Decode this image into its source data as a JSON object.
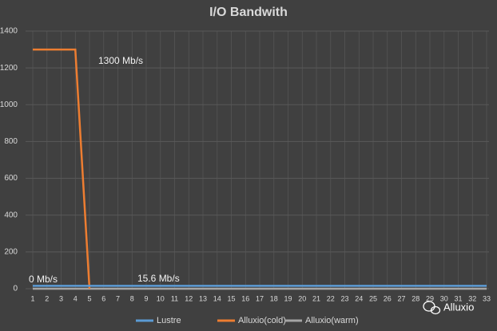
{
  "chart_data": {
    "type": "line",
    "title": "I/O Bandwith",
    "categories": [
      1,
      2,
      3,
      4,
      5,
      6,
      7,
      8,
      9,
      10,
      11,
      12,
      13,
      14,
      15,
      16,
      17,
      18,
      19,
      20,
      21,
      22,
      23,
      24,
      25,
      26,
      27,
      28,
      29,
      30,
      31,
      32,
      33
    ],
    "series": [
      {
        "name": "Lustre",
        "color": "#5b9bd5",
        "values": [
          15.6,
          15.6,
          15.6,
          15.6,
          15.6,
          15.6,
          15.6,
          15.6,
          15.6,
          15.6,
          15.6,
          15.6,
          15.6,
          15.6,
          15.6,
          15.6,
          15.6,
          15.6,
          15.6,
          15.6,
          15.6,
          15.6,
          15.6,
          15.6,
          15.6,
          15.6,
          15.6,
          15.6,
          15.6,
          15.6,
          15.6,
          15.6,
          15.6
        ]
      },
      {
        "name": "Alluxio(cold)",
        "color": "#ed7d31",
        "values": [
          1300,
          1300,
          1300,
          1300,
          0,
          null,
          null,
          null,
          null,
          null,
          null,
          null,
          null,
          null,
          null,
          null,
          null,
          null,
          null,
          null,
          null,
          null,
          null,
          null,
          null,
          null,
          null,
          null,
          null,
          null,
          null,
          null,
          null
        ]
      },
      {
        "name": "Alluxio(warm)",
        "color": "#a5a5a5",
        "values": [
          0,
          0,
          0,
          0,
          0,
          0,
          0,
          0,
          0,
          0,
          0,
          0,
          0,
          0,
          0,
          0,
          0,
          0,
          0,
          0,
          0,
          0,
          0,
          0,
          0,
          0,
          0,
          0,
          0,
          0,
          0,
          0,
          0
        ]
      }
    ],
    "ylim": [
      0,
      1400
    ],
    "yticks": [
      0,
      200,
      400,
      600,
      800,
      1000,
      1200,
      1400
    ],
    "grid": true,
    "annotations": [
      "1300 Mb/s",
      "0 Mb/s",
      "15.6 Mb/s"
    ],
    "legend": "bottom"
  },
  "watermark": "Alluxio"
}
